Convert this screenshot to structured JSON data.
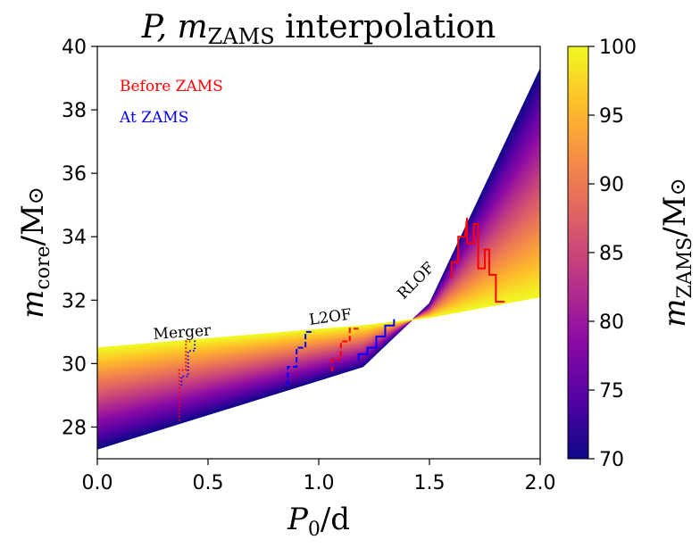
{
  "chart_data": {
    "type": "area",
    "title": "P, m_ZAMS interpolation",
    "title_parts": {
      "italic": "P, m",
      "subscript": "ZAMS",
      "rest": " interpolation"
    },
    "xlabel_parts": {
      "italic": "P",
      "subscript": "0",
      "rest": "/d"
    },
    "ylabel_parts": {
      "italic": "m",
      "subscript": "core",
      "rest": "/M",
      "symbol": "⊙"
    },
    "colorbar_label_parts": {
      "italic": "m",
      "subscript": "ZAMS",
      "rest": "/M",
      "symbol": "⊙"
    },
    "xlim": [
      0,
      2.0
    ],
    "ylim": [
      27,
      40
    ],
    "x_ticks": [
      0.0,
      0.5,
      1.0,
      1.5,
      2.0
    ],
    "x_tick_labels": [
      "0.0",
      "0.5",
      "1.0",
      "1.5",
      "2.0"
    ],
    "y_ticks": [
      28,
      30,
      32,
      34,
      36,
      38,
      40
    ],
    "y_tick_labels": [
      "28",
      "30",
      "32",
      "34",
      "36",
      "38",
      "40"
    ],
    "colorbar": {
      "colormap": "plasma",
      "range": [
        70,
        100
      ],
      "ticks": [
        70,
        75,
        80,
        85,
        90,
        95,
        100
      ],
      "tick_labels": [
        "70",
        "75",
        "80",
        "85",
        "90",
        "95",
        "100"
      ],
      "colors": [
        "#0d0887",
        "#5302a3",
        "#8b0aa5",
        "#b83289",
        "#db5c68",
        "#f48849",
        "#febd2a",
        "#f0f921"
      ]
    },
    "surface": {
      "x": [
        0.0,
        1.2,
        1.5,
        2.0
      ],
      "top_m100": [
        30.5,
        31.2,
        31.45,
        32.1
      ],
      "bottom_m70": [
        27.3,
        29.9,
        31.9,
        39.3
      ]
    },
    "annotations": [
      {
        "text": "Before ZAMS",
        "color": "#ff0000"
      },
      {
        "text": "At ZAMS",
        "color": "#0000ff"
      }
    ],
    "boundary_labels": [
      {
        "text": "Merger"
      },
      {
        "text": "L2OF"
      },
      {
        "text": "RLOF"
      }
    ],
    "boundaries": [
      {
        "name": "merger_before_zams",
        "color": "#ff0000",
        "style": "dotted",
        "points": [
          [
            0.37,
            28.2
          ],
          [
            0.37,
            29.0
          ],
          [
            0.37,
            29.8
          ],
          [
            0.4,
            29.8
          ],
          [
            0.4,
            30.7
          ],
          [
            0.42,
            30.7
          ]
        ]
      },
      {
        "name": "merger_at_zams",
        "color": "#0000ff",
        "style": "dotted",
        "points": [
          [
            0.38,
            29.3
          ],
          [
            0.38,
            29.6
          ],
          [
            0.41,
            29.6
          ],
          [
            0.41,
            30.4
          ],
          [
            0.44,
            30.4
          ],
          [
            0.44,
            30.8
          ]
        ]
      },
      {
        "name": "l2of_before_zams",
        "color": "#ff0000",
        "style": "dashed",
        "points": [
          [
            1.06,
            29.75
          ],
          [
            1.06,
            30.15
          ],
          [
            1.1,
            30.15
          ],
          [
            1.1,
            30.7
          ],
          [
            1.14,
            30.7
          ],
          [
            1.14,
            31.1
          ],
          [
            1.18,
            31.1
          ]
        ]
      },
      {
        "name": "l2of_at_zams",
        "color": "#0000ff",
        "style": "dashed",
        "points": [
          [
            0.86,
            29.3
          ],
          [
            0.86,
            29.9
          ],
          [
            0.9,
            29.9
          ],
          [
            0.9,
            30.5
          ],
          [
            0.94,
            30.5
          ],
          [
            0.94,
            31.0
          ],
          [
            0.98,
            31.0
          ]
        ]
      },
      {
        "name": "rlof_at_zams",
        "color": "#0000ff",
        "style": "solid",
        "points": [
          [
            1.18,
            30.1
          ],
          [
            1.18,
            30.3
          ],
          [
            1.22,
            30.3
          ],
          [
            1.22,
            30.5
          ],
          [
            1.26,
            30.5
          ],
          [
            1.26,
            30.85
          ],
          [
            1.3,
            30.85
          ],
          [
            1.3,
            31.2
          ],
          [
            1.34,
            31.2
          ],
          [
            1.34,
            31.4
          ]
        ]
      },
      {
        "name": "rlof_before_zams",
        "color": "#ff0000",
        "style": "solid",
        "points": [
          [
            1.6,
            32.7
          ],
          [
            1.6,
            33.2
          ],
          [
            1.63,
            33.2
          ],
          [
            1.63,
            34.0
          ],
          [
            1.66,
            34.0
          ],
          [
            1.67,
            34.6
          ],
          [
            1.67,
            33.8
          ],
          [
            1.7,
            33.8
          ],
          [
            1.7,
            34.4
          ],
          [
            1.72,
            34.4
          ],
          [
            1.72,
            33.0
          ],
          [
            1.75,
            33.0
          ],
          [
            1.75,
            33.6
          ],
          [
            1.77,
            33.6
          ],
          [
            1.77,
            32.8
          ],
          [
            1.8,
            32.8
          ],
          [
            1.8,
            31.95
          ],
          [
            1.84,
            31.95
          ]
        ]
      }
    ]
  }
}
